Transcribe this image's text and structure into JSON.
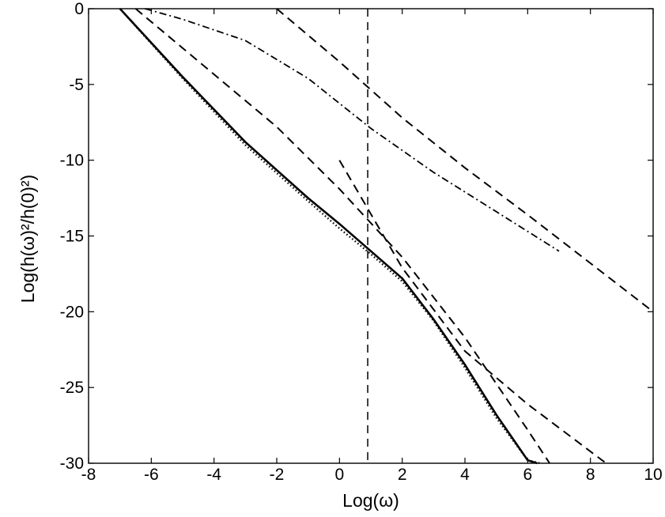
{
  "chart_data": {
    "type": "line",
    "xlabel": "Log(ω)",
    "ylabel": "Log(h(ω)²/h(0)²)",
    "xlim": [
      -8,
      10
    ],
    "ylim": [
      -30,
      0
    ],
    "xticks": [
      -8,
      -6,
      -4,
      -2,
      0,
      2,
      4,
      6,
      8,
      10
    ],
    "yticks": [
      0,
      -5,
      -10,
      -15,
      -20,
      -25,
      -30
    ],
    "grid": false,
    "legend": "none",
    "vertical_line_x": 0.9,
    "series": [
      {
        "style": "solid",
        "x": [
          -7,
          -5,
          -3,
          -1,
          0,
          1,
          2,
          3,
          4,
          5,
          6,
          6.3
        ],
        "y": [
          0,
          -4.5,
          -8.8,
          -12.5,
          -14.2,
          -16,
          -17.8,
          -20.5,
          -23.5,
          -26.8,
          -29.8,
          -30
        ]
      },
      {
        "style": "dotted",
        "x": [
          -7,
          -5,
          -3,
          -1,
          0,
          1,
          2,
          3,
          4,
          5,
          6,
          6.4
        ],
        "y": [
          0,
          -4.6,
          -9,
          -12.7,
          -14.5,
          -16.2,
          -18,
          -20.6,
          -23.7,
          -27,
          -29.8,
          -30
        ]
      },
      {
        "style": "dashed",
        "x": [
          -6.5,
          -2,
          0,
          2,
          4,
          6,
          6.7
        ],
        "y": [
          0,
          -7.8,
          -11.9,
          -16.4,
          -21.7,
          -27.8,
          -30
        ]
      },
      {
        "style": "dashed",
        "x": [
          0,
          2,
          4,
          6,
          8.5
        ],
        "y": [
          -10,
          -17.1,
          -22.6,
          -26.1,
          -30
        ]
      },
      {
        "style": "dashed",
        "x": [
          -2,
          0,
          2,
          4,
          6,
          8,
          10
        ],
        "y": [
          0,
          -3.5,
          -7.2,
          -10.5,
          -13.6,
          -16.8,
          -20
        ]
      },
      {
        "style": "dashdot",
        "x": [
          -6.2,
          -5,
          -3,
          -1,
          1,
          3,
          5,
          7
        ],
        "y": [
          0,
          -0.7,
          -2.1,
          -4.6,
          -7.9,
          -10.8,
          -13.4,
          -16
        ]
      }
    ]
  }
}
